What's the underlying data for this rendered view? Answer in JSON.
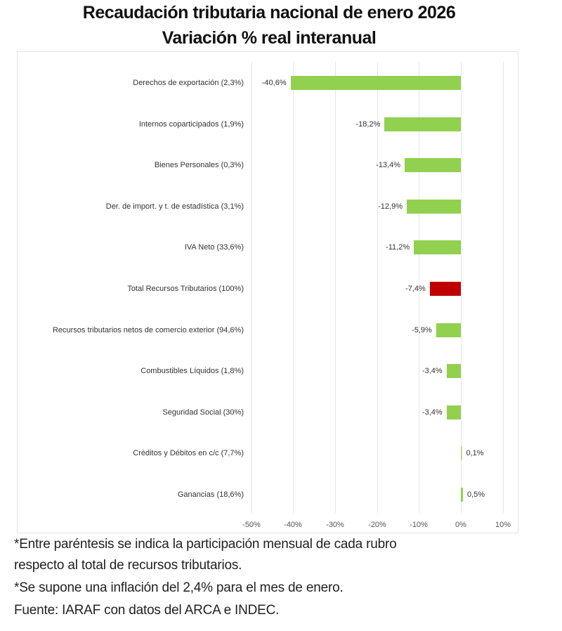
{
  "title": {
    "line1": "Recaudación tributaria nacional de enero 2026",
    "line2": "Variación % real interanual"
  },
  "colors": {
    "bar_default": "#92d050",
    "bar_highlight": "#c00000",
    "gridline": "#e6e6e6",
    "text": "#333333"
  },
  "chart_data": {
    "type": "bar",
    "orientation": "horizontal",
    "title": "Recaudación tributaria nacional de enero 2026 — Variación % real interanual",
    "xlabel": "",
    "ylabel": "",
    "xlim": [
      -50,
      10
    ],
    "x_ticks": [
      "-50%",
      "-40%",
      "-30%",
      "-20%",
      "-10%",
      "0%",
      "10%"
    ],
    "grid": true,
    "legend": "none",
    "categories": [
      "Derechos de exportación (2,3%)",
      "Internos coparticipados (1,9%)",
      "Bienes Personales (0,3%)",
      "Der. de import. y t. de estadística (3,1%)",
      "IVA Neto (33,6%)",
      "Total Recursos Tributarios (100%)",
      "Recursos tributarios netos de comercio exterior (94,6%)",
      "Combustibles Líquidos (1,8%)",
      "Seguridad Social (30%)",
      "Créditos y Débitos en c/c (7,7%)",
      "Ganancias (18,6%)"
    ],
    "values": [
      -40.6,
      -18.2,
      -13.4,
      -12.9,
      -11.2,
      -7.4,
      -5.9,
      -3.4,
      -3.4,
      0.1,
      0.5
    ],
    "value_labels": [
      "-40,6%",
      "-18,2%",
      "-13,4%",
      "-12,9%",
      "-11,2%",
      "-7,4%",
      "-5,9%",
      "-3,4%",
      "-3,4%",
      "0,1%",
      "0,5%"
    ],
    "highlight_index": 5
  },
  "footnotes": {
    "note1_line1": "*Entre paréntesis se indica la participación mensual de cada rubro",
    "note1_line2": " respecto al total de recursos tributarios.",
    "note2": "*Se supone una inflación del 2,4% para el mes de enero.",
    "source": "Fuente: IARAF con datos del ARCA e INDEC."
  }
}
